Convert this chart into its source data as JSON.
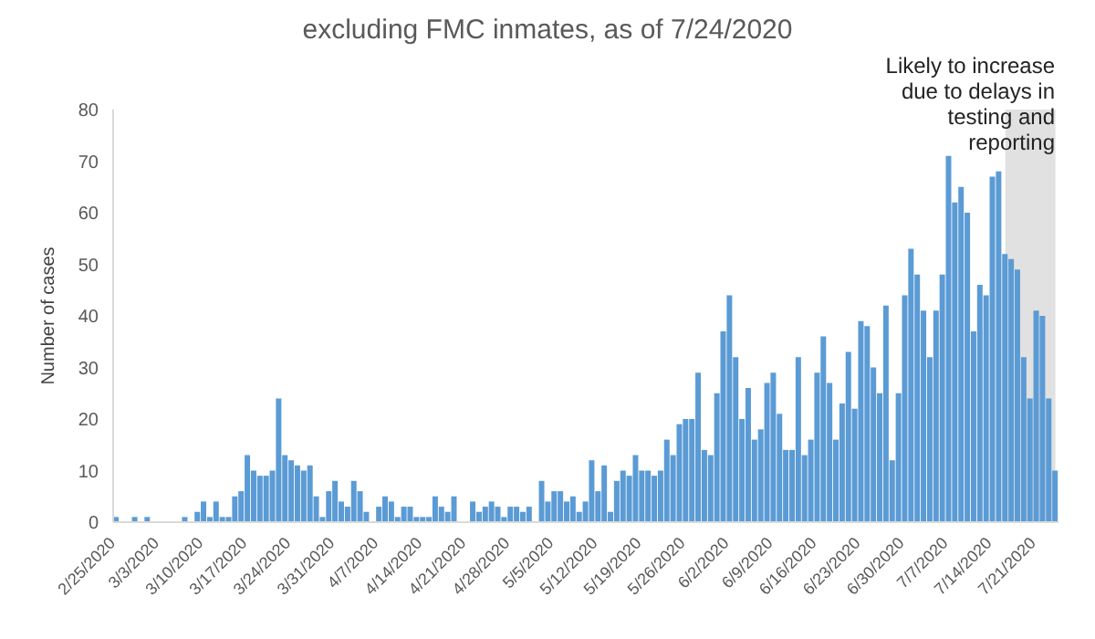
{
  "chart_data": {
    "type": "bar",
    "title": "excluding FMC inmates, as of 7/24/2020",
    "ylabel": "Number of cases",
    "color": "#5b9bd5",
    "x": [
      "2020-02-25",
      "2020-02-26",
      "2020-02-27",
      "2020-02-28",
      "2020-02-29",
      "2020-03-01",
      "2020-03-02",
      "2020-03-03",
      "2020-03-04",
      "2020-03-05",
      "2020-03-06",
      "2020-03-07",
      "2020-03-08",
      "2020-03-09",
      "2020-03-10",
      "2020-03-11",
      "2020-03-12",
      "2020-03-13",
      "2020-03-14",
      "2020-03-15",
      "2020-03-16",
      "2020-03-17",
      "2020-03-18",
      "2020-03-19",
      "2020-03-20",
      "2020-03-21",
      "2020-03-22",
      "2020-03-23",
      "2020-03-24",
      "2020-03-25",
      "2020-03-26",
      "2020-03-27",
      "2020-03-28",
      "2020-03-29",
      "2020-03-30",
      "2020-03-31",
      "2020-04-01",
      "2020-04-02",
      "2020-04-03",
      "2020-04-04",
      "2020-04-05",
      "2020-04-06",
      "2020-04-07",
      "2020-04-08",
      "2020-04-09",
      "2020-04-10",
      "2020-04-11",
      "2020-04-12",
      "2020-04-13",
      "2020-04-14",
      "2020-04-15",
      "2020-04-16",
      "2020-04-17",
      "2020-04-18",
      "2020-04-19",
      "2020-04-20",
      "2020-04-21",
      "2020-04-22",
      "2020-04-23",
      "2020-04-24",
      "2020-04-25",
      "2020-04-26",
      "2020-04-27",
      "2020-04-28",
      "2020-04-29",
      "2020-04-30",
      "2020-05-01",
      "2020-05-02",
      "2020-05-03",
      "2020-05-04",
      "2020-05-05",
      "2020-05-06",
      "2020-05-07",
      "2020-05-08",
      "2020-05-09",
      "2020-05-10",
      "2020-05-11",
      "2020-05-12",
      "2020-05-13",
      "2020-05-14",
      "2020-05-15",
      "2020-05-16",
      "2020-05-17",
      "2020-05-18",
      "2020-05-19",
      "2020-05-20",
      "2020-05-21",
      "2020-05-22",
      "2020-05-23",
      "2020-05-24",
      "2020-05-25",
      "2020-05-26",
      "2020-05-27",
      "2020-05-28",
      "2020-05-29",
      "2020-05-30",
      "2020-05-31",
      "2020-06-01",
      "2020-06-02",
      "2020-06-03",
      "2020-06-04",
      "2020-06-05",
      "2020-06-06",
      "2020-06-07",
      "2020-06-08",
      "2020-06-09",
      "2020-06-10",
      "2020-06-11",
      "2020-06-12",
      "2020-06-13",
      "2020-06-14",
      "2020-06-15",
      "2020-06-16",
      "2020-06-17",
      "2020-06-18",
      "2020-06-19",
      "2020-06-20",
      "2020-06-21",
      "2020-06-22",
      "2020-06-23",
      "2020-06-24",
      "2020-06-25",
      "2020-06-26",
      "2020-06-27",
      "2020-06-28",
      "2020-06-29",
      "2020-06-30",
      "2020-07-01",
      "2020-07-02",
      "2020-07-03",
      "2020-07-04",
      "2020-07-05",
      "2020-07-06",
      "2020-07-07",
      "2020-07-08",
      "2020-07-09",
      "2020-07-10",
      "2020-07-11",
      "2020-07-12",
      "2020-07-13",
      "2020-07-14",
      "2020-07-15",
      "2020-07-16",
      "2020-07-17",
      "2020-07-18",
      "2020-07-19",
      "2020-07-20",
      "2020-07-21",
      "2020-07-22",
      "2020-07-23",
      "2020-07-24"
    ],
    "values": [
      1,
      0,
      0,
      1,
      0,
      1,
      0,
      0,
      0,
      0,
      0,
      1,
      0,
      2,
      4,
      1,
      4,
      1,
      1,
      5,
      6,
      13,
      10,
      9,
      9,
      10,
      24,
      13,
      12,
      11,
      10,
      11,
      5,
      1,
      6,
      8,
      4,
      3,
      8,
      6,
      2,
      0,
      3,
      5,
      4,
      1,
      3,
      3,
      1,
      1,
      1,
      5,
      3,
      2,
      5,
      0,
      0,
      4,
      2,
      3,
      4,
      3,
      1,
      3,
      3,
      2,
      3,
      0,
      8,
      4,
      6,
      6,
      4,
      5,
      2,
      4,
      12,
      6,
      11,
      2,
      8,
      10,
      9,
      13,
      10,
      10,
      9,
      10,
      16,
      13,
      19,
      20,
      20,
      29,
      14,
      13,
      25,
      37,
      44,
      32,
      20,
      26,
      16,
      18,
      27,
      29,
      21,
      14,
      14,
      32,
      13,
      16,
      29,
      36,
      27,
      16,
      23,
      33,
      22,
      39,
      38,
      30,
      25,
      42,
      12,
      25,
      44,
      53,
      48,
      41,
      32,
      41,
      48,
      71,
      62,
      65,
      60,
      37,
      46,
      44,
      67,
      68,
      52,
      51,
      49,
      32,
      24,
      41,
      40,
      24,
      10
    ],
    "xlim": [
      "2020-02-25",
      "2020-07-24"
    ],
    "ylim": [
      0,
      80
    ],
    "yticks": [
      0,
      10,
      20,
      30,
      40,
      50,
      60,
      70,
      80
    ],
    "xticks": [
      {
        "value": "2020-02-25",
        "label": "2/25/2020"
      },
      {
        "value": "2020-03-03",
        "label": "3/3/2020"
      },
      {
        "value": "2020-03-10",
        "label": "3/10/2020"
      },
      {
        "value": "2020-03-17",
        "label": "3/17/2020"
      },
      {
        "value": "2020-03-24",
        "label": "3/24/2020"
      },
      {
        "value": "2020-03-31",
        "label": "3/31/2020"
      },
      {
        "value": "2020-04-07",
        "label": "4/7/2020"
      },
      {
        "value": "2020-04-14",
        "label": "4/14/2020"
      },
      {
        "value": "2020-04-21",
        "label": "4/21/2020"
      },
      {
        "value": "2020-04-28",
        "label": "4/28/2020"
      },
      {
        "value": "2020-05-05",
        "label": "5/5/2020"
      },
      {
        "value": "2020-05-12",
        "label": "5/12/2020"
      },
      {
        "value": "2020-05-19",
        "label": "5/19/2020"
      },
      {
        "value": "2020-05-26",
        "label": "5/26/2020"
      },
      {
        "value": "2020-06-02",
        "label": "6/2/2020"
      },
      {
        "value": "2020-06-09",
        "label": "6/9/2020"
      },
      {
        "value": "2020-06-16",
        "label": "6/16/2020"
      },
      {
        "value": "2020-06-23",
        "label": "6/23/2020"
      },
      {
        "value": "2020-06-30",
        "label": "6/30/2020"
      },
      {
        "value": "2020-07-07",
        "label": "7/7/2020"
      },
      {
        "value": "2020-07-14",
        "label": "7/14/2020"
      },
      {
        "value": "2020-07-21",
        "label": "7/21/2020"
      }
    ],
    "bands": [
      {
        "axis": "x",
        "from": "2020-07-16",
        "to": "2020-07-24",
        "label": "Likely to increase due to delays in testing and reporting",
        "color": "#d9d9d9"
      }
    ],
    "grid": false,
    "legend": false
  }
}
